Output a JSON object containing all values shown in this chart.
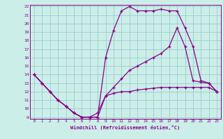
{
  "title": "",
  "xlabel": "Windchill (Refroidissement éolien,°C)",
  "ylabel": "",
  "bg_color": "#cceee8",
  "line_color": "#880088",
  "grid_color": "#99cccc",
  "xlim": [
    -0.5,
    23.5
  ],
  "ylim": [
    8.8,
    22.2
  ],
  "xticks": [
    0,
    1,
    2,
    3,
    4,
    5,
    6,
    7,
    8,
    9,
    10,
    11,
    12,
    13,
    14,
    15,
    16,
    17,
    18,
    19,
    20,
    21,
    22,
    23
  ],
  "yticks": [
    9,
    10,
    11,
    12,
    13,
    14,
    15,
    16,
    17,
    18,
    19,
    20,
    21,
    22
  ],
  "line1_x": [
    0,
    1,
    2,
    3,
    4,
    5,
    6,
    7,
    8,
    9,
    10,
    11,
    12,
    13,
    14,
    15,
    16,
    17,
    18,
    19,
    20,
    21,
    22,
    23
  ],
  "line1_y": [
    14.0,
    13.0,
    12.0,
    11.0,
    10.3,
    9.5,
    9.0,
    9.0,
    9.0,
    11.5,
    11.8,
    12.0,
    12.0,
    12.2,
    12.3,
    12.4,
    12.5,
    12.5,
    12.5,
    12.5,
    12.5,
    12.5,
    12.5,
    12.0
  ],
  "line2_x": [
    0,
    1,
    2,
    3,
    4,
    5,
    6,
    7,
    8,
    9,
    10,
    11,
    12,
    13,
    14,
    15,
    16,
    17,
    18,
    19,
    20,
    21,
    22,
    23
  ],
  "line2_y": [
    14.0,
    13.0,
    12.0,
    11.0,
    10.3,
    9.5,
    9.0,
    9.0,
    9.0,
    16.0,
    19.2,
    21.5,
    22.0,
    21.5,
    21.5,
    21.5,
    21.7,
    21.5,
    21.5,
    19.5,
    17.3,
    13.3,
    13.0,
    12.0
  ],
  "line3_x": [
    0,
    1,
    2,
    3,
    4,
    5,
    6,
    7,
    8,
    9,
    10,
    11,
    12,
    13,
    14,
    15,
    16,
    17,
    18,
    19,
    20,
    21,
    22,
    23
  ],
  "line3_y": [
    14.0,
    13.0,
    12.0,
    11.0,
    10.3,
    9.5,
    9.0,
    9.0,
    9.5,
    11.5,
    12.5,
    13.5,
    14.5,
    15.0,
    15.5,
    16.0,
    16.5,
    17.3,
    19.5,
    17.3,
    13.3,
    13.1,
    13.0,
    12.0
  ]
}
